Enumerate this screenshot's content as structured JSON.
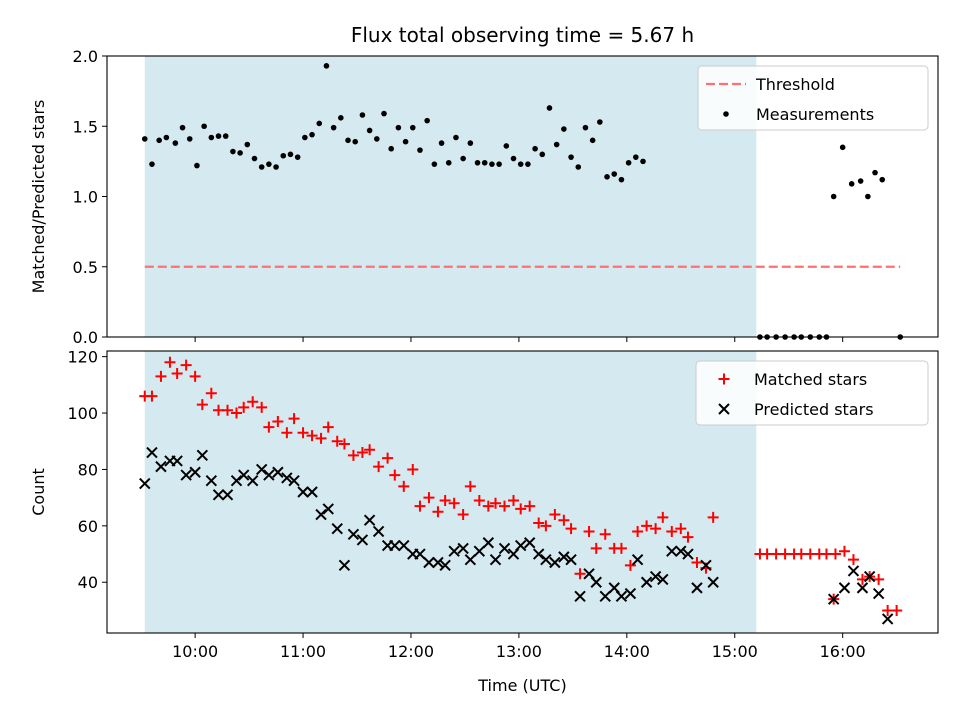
{
  "chart_data": [
    {
      "type": "scatter",
      "title": "Flux total observing time = 5.67 h",
      "xlabel": "",
      "ylabel": "Matched/Predicted stars",
      "ylim": [
        0,
        2.0
      ],
      "yticks": [
        "0.0",
        "0.5",
        "1.0",
        "1.5",
        "2.0"
      ],
      "x_ticks_shown": false,
      "shaded_interval": {
        "start": "09:32",
        "end": "15:12",
        "color": "#d4eaf0"
      },
      "legend": {
        "placement": "top-right",
        "entries": [
          "Threshold",
          "Measurements"
        ]
      },
      "threshold": {
        "name": "Threshold",
        "value": 0.5,
        "x_start": "09:32",
        "x_end": "16:32",
        "color": "#ff7070",
        "style": "dashed"
      },
      "series": [
        {
          "name": "Measurements",
          "color": "#000000",
          "marker": "dot",
          "points": [
            [
              "09:32",
              1.41
            ],
            [
              "09:36",
              1.23
            ],
            [
              "09:40",
              1.4
            ],
            [
              "09:44",
              1.42
            ],
            [
              "09:49",
              1.38
            ],
            [
              "09:53",
              1.49
            ],
            [
              "09:57",
              1.41
            ],
            [
              "10:01",
              1.22
            ],
            [
              "10:05",
              1.5
            ],
            [
              "10:09",
              1.42
            ],
            [
              "10:13",
              1.43
            ],
            [
              "10:17",
              1.43
            ],
            [
              "10:21",
              1.32
            ],
            [
              "10:25",
              1.31
            ],
            [
              "10:29",
              1.37
            ],
            [
              "10:33",
              1.27
            ],
            [
              "10:37",
              1.21
            ],
            [
              "10:41",
              1.23
            ],
            [
              "10:45",
              1.21
            ],
            [
              "10:49",
              1.29
            ],
            [
              "10:53",
              1.3
            ],
            [
              "10:57",
              1.28
            ],
            [
              "11:01",
              1.42
            ],
            [
              "11:05",
              1.44
            ],
            [
              "11:09",
              1.52
            ],
            [
              "11:13",
              1.93
            ],
            [
              "11:17",
              1.49
            ],
            [
              "11:21",
              1.56
            ],
            [
              "11:25",
              1.4
            ],
            [
              "11:29",
              1.39
            ],
            [
              "11:33",
              1.58
            ],
            [
              "11:37",
              1.47
            ],
            [
              "11:41",
              1.41
            ],
            [
              "11:45",
              1.59
            ],
            [
              "11:49",
              1.34
            ],
            [
              "11:53",
              1.49
            ],
            [
              "11:57",
              1.39
            ],
            [
              "12:01",
              1.49
            ],
            [
              "12:05",
              1.33
            ],
            [
              "12:09",
              1.54
            ],
            [
              "12:13",
              1.23
            ],
            [
              "12:17",
              1.38
            ],
            [
              "12:21",
              1.24
            ],
            [
              "12:25",
              1.42
            ],
            [
              "12:29",
              1.27
            ],
            [
              "12:33",
              1.38
            ],
            [
              "12:37",
              1.24
            ],
            [
              "12:41",
              1.24
            ],
            [
              "12:45",
              1.23
            ],
            [
              "12:49",
              1.23
            ],
            [
              "12:53",
              1.36
            ],
            [
              "12:57",
              1.27
            ],
            [
              "13:01",
              1.23
            ],
            [
              "13:05",
              1.23
            ],
            [
              "13:09",
              1.34
            ],
            [
              "13:13",
              1.3
            ],
            [
              "13:17",
              1.63
            ],
            [
              "13:21",
              1.37
            ],
            [
              "13:25",
              1.48
            ],
            [
              "13:29",
              1.28
            ],
            [
              "13:33",
              1.21
            ],
            [
              "13:37",
              1.49
            ],
            [
              "13:41",
              1.4
            ],
            [
              "13:45",
              1.53
            ],
            [
              "13:49",
              1.14
            ],
            [
              "13:53",
              1.16
            ],
            [
              "13:57",
              1.12
            ],
            [
              "14:01",
              1.24
            ],
            [
              "14:05",
              1.28
            ],
            [
              "14:09",
              1.25
            ],
            [
              "15:14",
              0.0
            ],
            [
              "15:18",
              0.0
            ],
            [
              "15:23",
              0.0
            ],
            [
              "15:28",
              0.0
            ],
            [
              "15:33",
              0.0
            ],
            [
              "15:37",
              0.0
            ],
            [
              "15:42",
              0.0
            ],
            [
              "15:47",
              0.0
            ],
            [
              "15:51",
              0.0
            ],
            [
              "15:55",
              1.0
            ],
            [
              "16:00",
              1.35
            ],
            [
              "16:05",
              1.09
            ],
            [
              "16:10",
              1.11
            ],
            [
              "16:14",
              1.0
            ],
            [
              "16:18",
              1.17
            ],
            [
              "16:22",
              1.12
            ],
            [
              "16:32",
              0.0
            ]
          ]
        }
      ]
    },
    {
      "type": "scatter",
      "title": "",
      "xlabel": "Time (UTC)",
      "ylabel": "Count",
      "ylim": [
        22,
        122
      ],
      "yticks": [
        "40",
        "60",
        "80",
        "100",
        "120"
      ],
      "xlim": [
        "09:11",
        "16:53"
      ],
      "xticks": [
        "10:00",
        "11:00",
        "12:00",
        "13:00",
        "14:00",
        "15:00",
        "16:00"
      ],
      "shaded_interval": {
        "start": "09:32",
        "end": "15:12",
        "color": "#d4eaf0"
      },
      "legend": {
        "placement": "top-right",
        "entries": [
          "Matched stars",
          "Predicted stars"
        ]
      },
      "series": [
        {
          "name": "Matched stars",
          "color": "#ff0000",
          "marker": "plus",
          "points": [
            [
              "09:32",
              106
            ],
            [
              "09:36",
              106
            ],
            [
              "09:41",
              113
            ],
            [
              "09:46",
              118
            ],
            [
              "09:50",
              114
            ],
            [
              "09:55",
              117
            ],
            [
              "10:00",
              113
            ],
            [
              "10:04",
              103
            ],
            [
              "10:09",
              107
            ],
            [
              "10:13",
              101
            ],
            [
              "10:18",
              101
            ],
            [
              "10:23",
              100
            ],
            [
              "10:27",
              102
            ],
            [
              "10:32",
              104
            ],
            [
              "10:37",
              102
            ],
            [
              "10:41",
              95
            ],
            [
              "10:46",
              97
            ],
            [
              "10:51",
              93
            ],
            [
              "10:55",
              98
            ],
            [
              "11:00",
              93
            ],
            [
              "11:05",
              92
            ],
            [
              "11:10",
              91
            ],
            [
              "11:14",
              95
            ],
            [
              "11:19",
              90
            ],
            [
              "11:23",
              89
            ],
            [
              "11:28",
              85
            ],
            [
              "11:33",
              86
            ],
            [
              "11:37",
              87
            ],
            [
              "11:42",
              81
            ],
            [
              "11:47",
              84
            ],
            [
              "11:51",
              78
            ],
            [
              "11:56",
              74
            ],
            [
              "12:01",
              80
            ],
            [
              "12:05",
              67
            ],
            [
              "12:10",
              70
            ],
            [
              "12:15",
              65
            ],
            [
              "12:19",
              69
            ],
            [
              "12:24",
              68
            ],
            [
              "12:29",
              64
            ],
            [
              "12:33",
              74
            ],
            [
              "12:38",
              69
            ],
            [
              "12:43",
              67
            ],
            [
              "12:47",
              68
            ],
            [
              "12:52",
              67
            ],
            [
              "12:57",
              69
            ],
            [
              "13:01",
              66
            ],
            [
              "13:06",
              67
            ],
            [
              "13:11",
              61
            ],
            [
              "13:15",
              60
            ],
            [
              "13:20",
              64
            ],
            [
              "13:25",
              62
            ],
            [
              "13:29",
              59
            ],
            [
              "13:34",
              43
            ],
            [
              "13:39",
              58
            ],
            [
              "13:43",
              52
            ],
            [
              "13:48",
              57
            ],
            [
              "13:53",
              52
            ],
            [
              "13:57",
              52
            ],
            [
              "14:02",
              46
            ],
            [
              "14:06",
              58
            ],
            [
              "14:11",
              60
            ],
            [
              "14:16",
              59
            ],
            [
              "14:20",
              63
            ],
            [
              "14:25",
              58
            ],
            [
              "14:30",
              59
            ],
            [
              "14:34",
              56
            ],
            [
              "14:39",
              47
            ],
            [
              "14:44",
              45
            ],
            [
              "14:48",
              63
            ],
            [
              "15:14",
              50
            ],
            [
              "15:18",
              50
            ],
            [
              "15:23",
              50
            ],
            [
              "15:28",
              50
            ],
            [
              "15:33",
              50
            ],
            [
              "15:37",
              50
            ],
            [
              "15:42",
              50
            ],
            [
              "15:47",
              50
            ],
            [
              "15:51",
              50
            ],
            [
              "15:56",
              50
            ],
            [
              "15:55",
              34
            ],
            [
              "16:01",
              51
            ],
            [
              "16:06",
              48
            ],
            [
              "16:11",
              41
            ],
            [
              "16:15",
              42
            ],
            [
              "16:20",
              41
            ],
            [
              "16:25",
              30
            ],
            [
              "16:30",
              30
            ]
          ]
        },
        {
          "name": "Predicted stars",
          "color": "#000000",
          "marker": "x",
          "points": [
            [
              "09:32",
              75
            ],
            [
              "09:36",
              86
            ],
            [
              "09:41",
              81
            ],
            [
              "09:46",
              83
            ],
            [
              "09:50",
              83
            ],
            [
              "09:55",
              78
            ],
            [
              "10:00",
              79
            ],
            [
              "10:04",
              85
            ],
            [
              "10:09",
              76
            ],
            [
              "10:13",
              71
            ],
            [
              "10:18",
              71
            ],
            [
              "10:23",
              76
            ],
            [
              "10:27",
              78
            ],
            [
              "10:32",
              76
            ],
            [
              "10:37",
              80
            ],
            [
              "10:41",
              78
            ],
            [
              "10:46",
              79
            ],
            [
              "10:51",
              77
            ],
            [
              "10:55",
              76
            ],
            [
              "11:00",
              72
            ],
            [
              "11:05",
              72
            ],
            [
              "11:10",
              64
            ],
            [
              "11:14",
              66
            ],
            [
              "11:19",
              59
            ],
            [
              "11:23",
              46
            ],
            [
              "11:28",
              57
            ],
            [
              "11:33",
              55
            ],
            [
              "11:37",
              62
            ],
            [
              "11:42",
              58
            ],
            [
              "11:47",
              53
            ],
            [
              "11:51",
              53
            ],
            [
              "11:56",
              53
            ],
            [
              "12:01",
              50
            ],
            [
              "12:05",
              50
            ],
            [
              "12:10",
              47
            ],
            [
              "12:15",
              47
            ],
            [
              "12:19",
              46
            ],
            [
              "12:24",
              51
            ],
            [
              "12:29",
              52
            ],
            [
              "12:33",
              48
            ],
            [
              "12:38",
              51
            ],
            [
              "12:43",
              54
            ],
            [
              "12:47",
              48
            ],
            [
              "12:52",
              52
            ],
            [
              "12:57",
              50
            ],
            [
              "13:01",
              53
            ],
            [
              "13:06",
              54
            ],
            [
              "13:11",
              50
            ],
            [
              "13:15",
              48
            ],
            [
              "13:20",
              47
            ],
            [
              "13:25",
              49
            ],
            [
              "13:29",
              48
            ],
            [
              "13:34",
              35
            ],
            [
              "13:39",
              43
            ],
            [
              "13:43",
              40
            ],
            [
              "13:48",
              35
            ],
            [
              "13:53",
              38
            ],
            [
              "13:57",
              35
            ],
            [
              "14:02",
              36
            ],
            [
              "14:06",
              48
            ],
            [
              "14:11",
              40
            ],
            [
              "14:16",
              42
            ],
            [
              "14:20",
              41
            ],
            [
              "14:25",
              51
            ],
            [
              "14:30",
              51
            ],
            [
              "14:34",
              50
            ],
            [
              "14:39",
              38
            ],
            [
              "14:44",
              46
            ],
            [
              "14:48",
              40
            ],
            [
              "15:55",
              34
            ],
            [
              "16:01",
              38
            ],
            [
              "16:06",
              44
            ],
            [
              "16:11",
              38
            ],
            [
              "16:15",
              42
            ],
            [
              "16:20",
              36
            ],
            [
              "16:25",
              27
            ]
          ]
        }
      ]
    }
  ]
}
